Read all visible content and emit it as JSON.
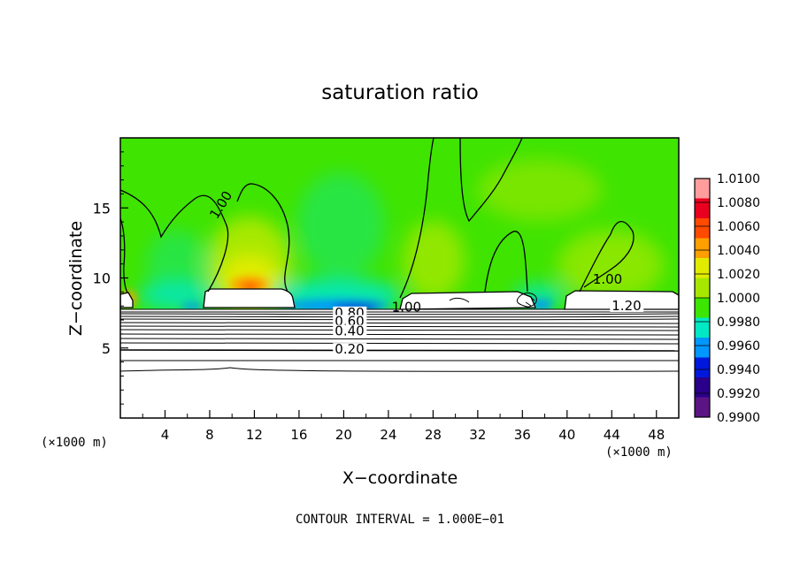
{
  "chart_data": {
    "type": "heatmap",
    "title": "saturation ratio",
    "xlabel": "X−coordinate",
    "ylabel": "Z−coordinate",
    "x_unit_left": "(×1000 m)",
    "x_unit_right": "(×1000 m)",
    "footer": "CONTOUR INTERVAL = 1.000E−01",
    "xlim": [
      0,
      50
    ],
    "ylim": [
      0,
      20
    ],
    "x_ticks": [
      "4",
      "8",
      "12",
      "16",
      "20",
      "24",
      "28",
      "32",
      "36",
      "40",
      "44",
      "48"
    ],
    "y_ticks": [
      "5",
      "10",
      "15"
    ],
    "colorbar_labels": [
      "1.0100",
      "1.0080",
      "1.0060",
      "1.0040",
      "1.0020",
      "1.0000",
      "0.9980",
      "0.9960",
      "0.9940",
      "0.9920",
      "0.9900"
    ],
    "colorbar_colors": [
      "#ff9d9d",
      "#e8001e",
      "#ff4a00",
      "#ff9f00",
      "#e2ec00",
      "#a8e800",
      "#3de600",
      "#00e8c4",
      "#0096ff",
      "#0018dc",
      "#2a008a",
      "#5a1484"
    ],
    "contour_labels": [
      {
        "text": "1.00",
        "x": 8.2,
        "z": 14.8
      },
      {
        "text": "1.00",
        "x": 24.3,
        "z": 7.6
      },
      {
        "text": "1.00",
        "x": 42.3,
        "z": 9.6
      },
      {
        "text": "1.20",
        "x": 44.0,
        "z": 7.7
      },
      {
        "text": "0.80",
        "x": 19.2,
        "z": 7.2
      },
      {
        "text": "0.60",
        "x": 19.2,
        "z": 6.6
      },
      {
        "text": "0.40",
        "x": 19.2,
        "z": 5.9
      },
      {
        "text": "0.20",
        "x": 19.2,
        "z": 4.6
      }
    ]
  }
}
